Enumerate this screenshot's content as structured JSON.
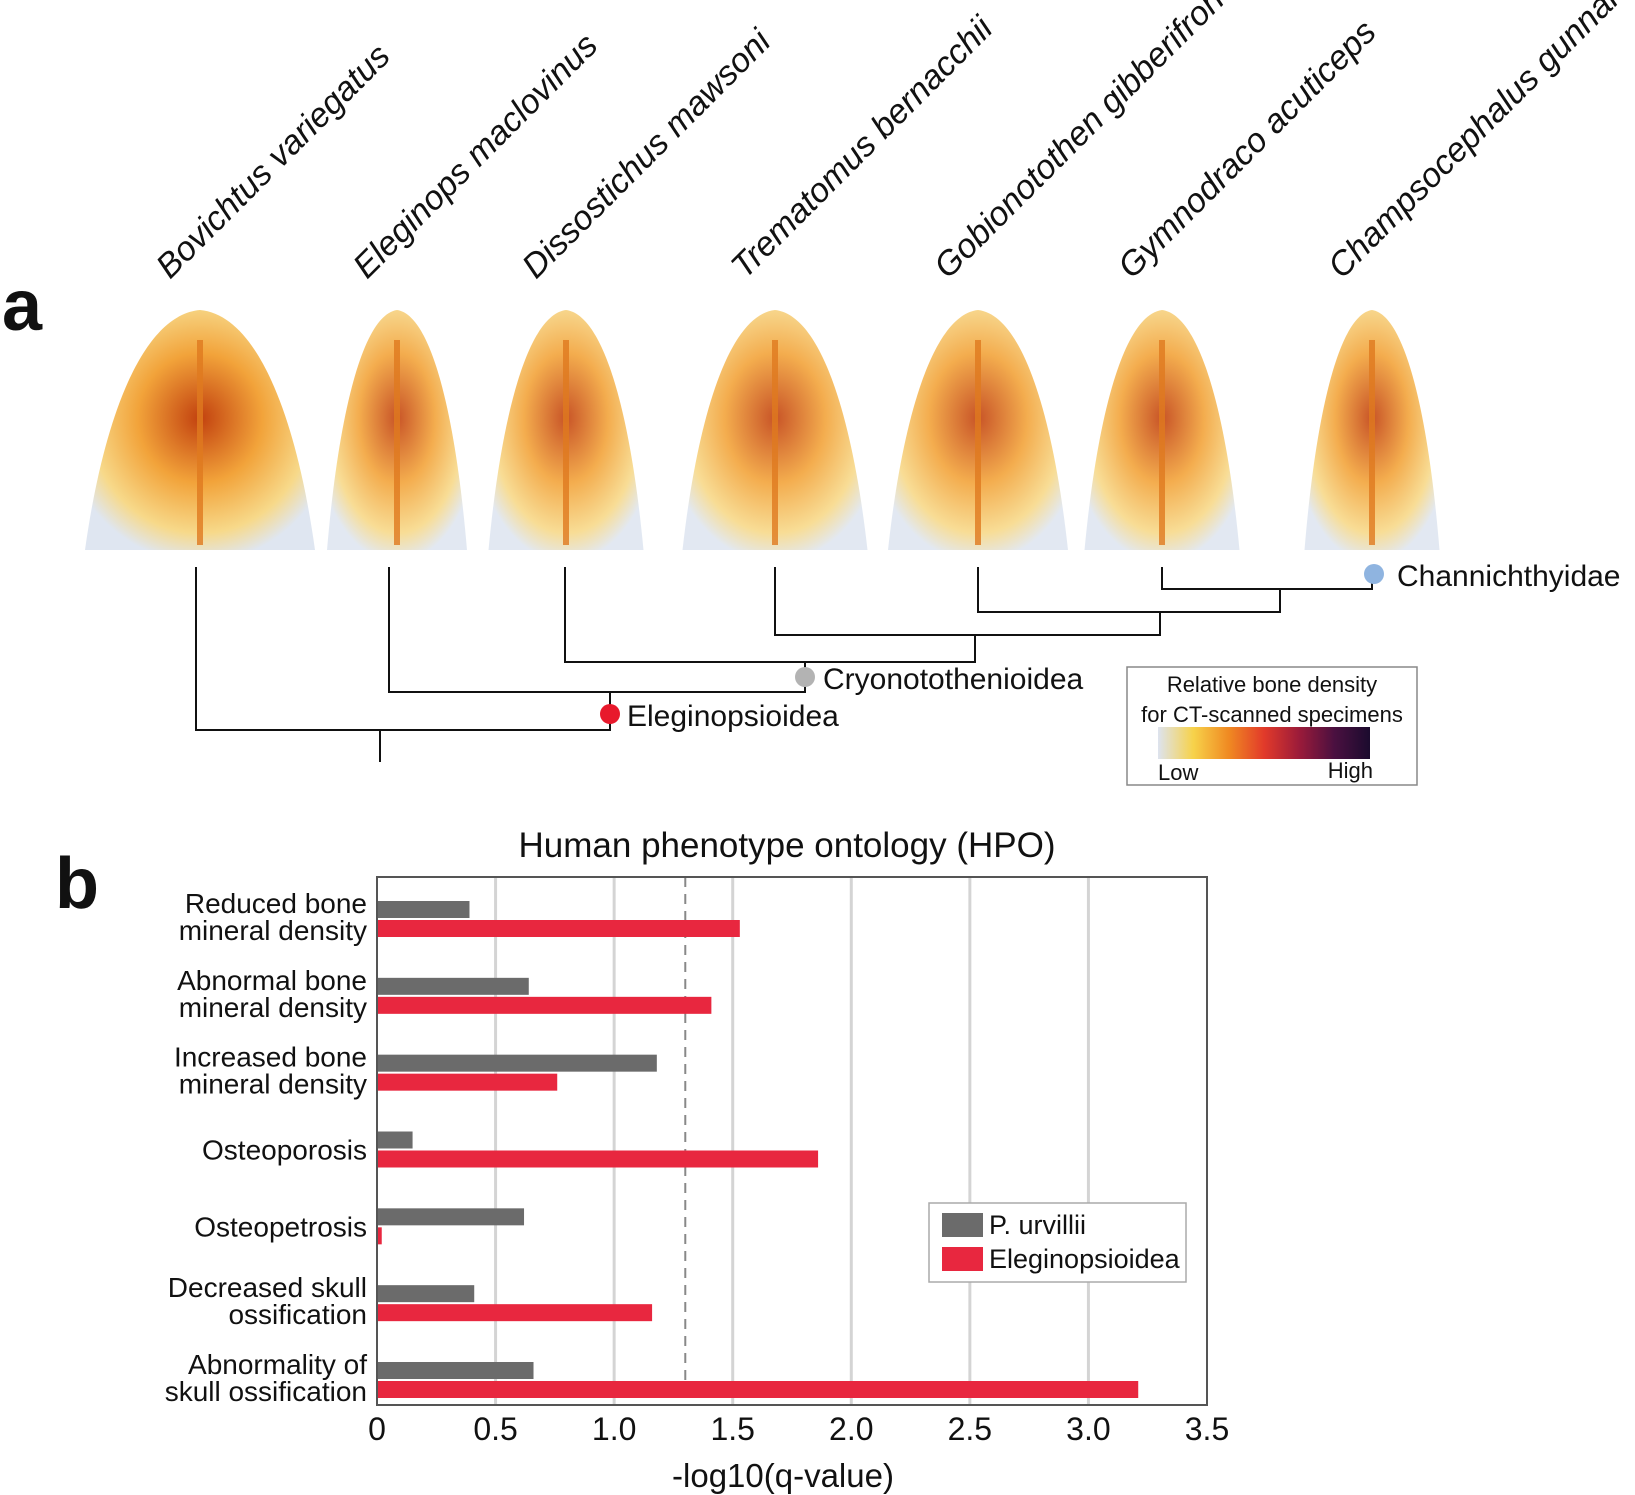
{
  "panel_a": {
    "label": "a",
    "species": [
      "Bovichtus variegatus",
      "Eleginops maclovinus",
      "Dissostichus mawsoni",
      "Trematomus bernacchii",
      "Gobionotothen gibberifrons",
      "Gymnodraco acuticeps",
      "Champsocephalus gunnari"
    ],
    "clades": [
      {
        "name": "Channichthyidae",
        "color": "#8fb4e0"
      },
      {
        "name": "Cryonotothenioidea",
        "color": "#b3b3b3"
      },
      {
        "name": "Eleginopsioidea",
        "color": "#e8192c"
      }
    ],
    "colorbar": {
      "title_line1": "Relative bone density",
      "title_line2": "for CT-scanned specimens",
      "low": "Low",
      "high": "High",
      "stops": [
        "#dde3ef",
        "#f7d24a",
        "#f08a22",
        "#e23a2a",
        "#9b1b3a",
        "#4a1040",
        "#1b0b2e"
      ]
    }
  },
  "panel_b": {
    "label": "b",
    "colors": {
      "p_urvillii": "#6b6b6b",
      "eleginopsioidea": "#e8273f"
    },
    "chart_data": {
      "type": "bar",
      "orientation": "horizontal",
      "title": "Human phenotype ontology (HPO)",
      "xlabel": "-log10(q-value)",
      "categories": [
        [
          "Reduced bone",
          "mineral density"
        ],
        [
          "Abnormal bone",
          "mineral density"
        ],
        [
          "Increased bone",
          "mineral density"
        ],
        [
          "Osteoporosis"
        ],
        [
          "Osteopetrosis"
        ],
        [
          "Decreased skull",
          "ossification"
        ],
        [
          "Abnormality of",
          "skull ossification"
        ]
      ],
      "series": [
        {
          "name": "P. urvillii",
          "values": [
            0.39,
            0.64,
            1.18,
            0.15,
            0.62,
            0.41,
            0.66
          ]
        },
        {
          "name": "Eleginopsioidea",
          "values": [
            1.53,
            1.41,
            0.76,
            1.86,
            0.02,
            1.16,
            3.21
          ]
        }
      ],
      "xlim": [
        0,
        3.5
      ],
      "xticks": [
        "0",
        "0.5",
        "1.0",
        "1.5",
        "2.0",
        "2.5",
        "3.0",
        "3.5"
      ],
      "threshold": 1.3,
      "grid": true,
      "legend_position": "lower-right"
    }
  }
}
